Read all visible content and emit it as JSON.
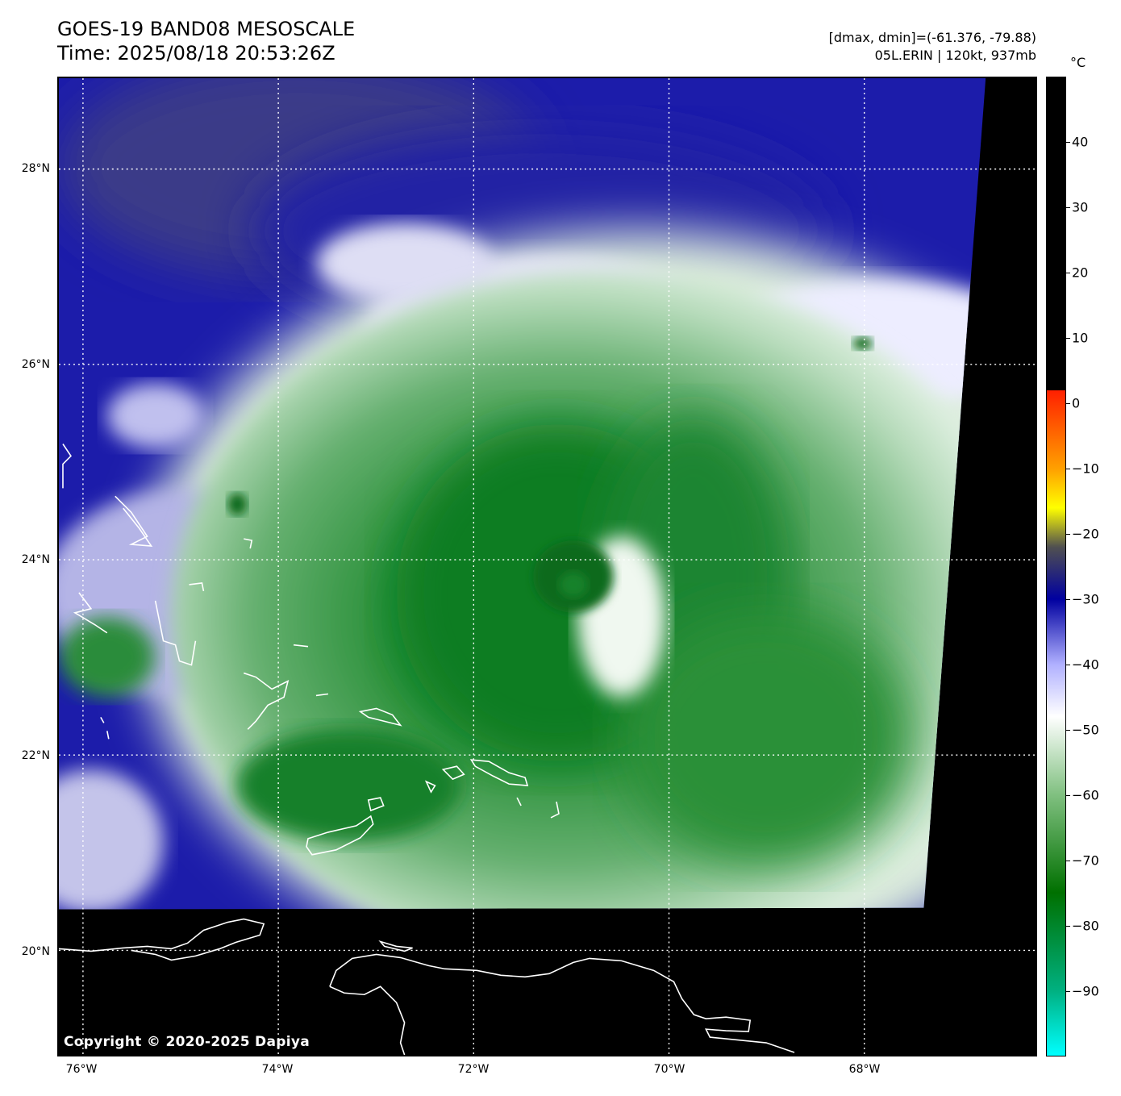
{
  "header": {
    "title_line1": "GOES-19 BAND08 MESOSCALE",
    "title_line2": "Time: 2025/08/18 20:53:26Z",
    "info_line1": "[dmax, dmin]=(-61.376, -79.88)",
    "info_line2": "05L.ERIN | 120kt, 937mb"
  },
  "map": {
    "copyright": "Copyright © 2020-2025 Dapiya",
    "lat_labels": [
      "28°N",
      "26°N",
      "24°N",
      "22°N",
      "20°N"
    ],
    "lon_labels": [
      "76°W",
      "74°W",
      "72°W",
      "70°W",
      "68°W"
    ],
    "gridlines": "dotted-white",
    "coastline_color": "#ffffff",
    "no_data_color": "#000000"
  },
  "colorbar": {
    "unit": "°C",
    "ticks": [
      "40",
      "30",
      "20",
      "10",
      "0",
      "−10",
      "−20",
      "−30",
      "−40",
      "−50",
      "−60",
      "−70",
      "−80",
      "−90"
    ],
    "tick_values": [
      40,
      30,
      20,
      10,
      0,
      -10,
      -20,
      -30,
      -40,
      -50,
      -60,
      -70,
      -80,
      -90
    ],
    "range": [
      -100,
      50
    ],
    "colors": {
      "warm_black": "#000000",
      "red": "#ff2000",
      "orange": "#ffa000",
      "yellow": "#ffff00",
      "gray": "#505050",
      "blue": "#0000a0",
      "lavender": "#b0b0ff",
      "white": "#ffffff",
      "light_green": "#80c080",
      "green": "#007000",
      "teal": "#00b080",
      "cyan": "#00ffff"
    }
  }
}
